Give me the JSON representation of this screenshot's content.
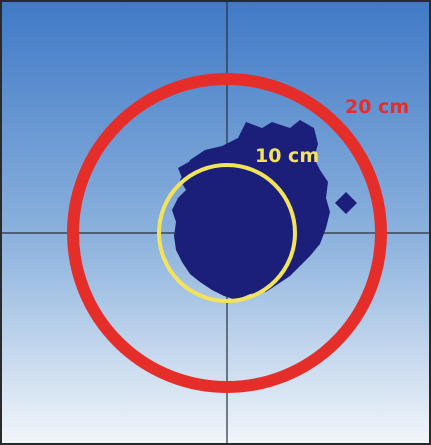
{
  "figure": {
    "labels": {
      "outer_ring": "20 cm",
      "inner_ring": "10 cm"
    },
    "colors": {
      "sky_top": "#3f79c6",
      "sky_mid": "#8fb4de",
      "sky_bottom": "#f2f6fa",
      "crosshair": "#2a2f3a",
      "outer_ring": "#e52e2a",
      "inner_ring": "#f2e35a",
      "debris": "#1b1f7a",
      "frame": "#2a2a2a"
    }
  }
}
